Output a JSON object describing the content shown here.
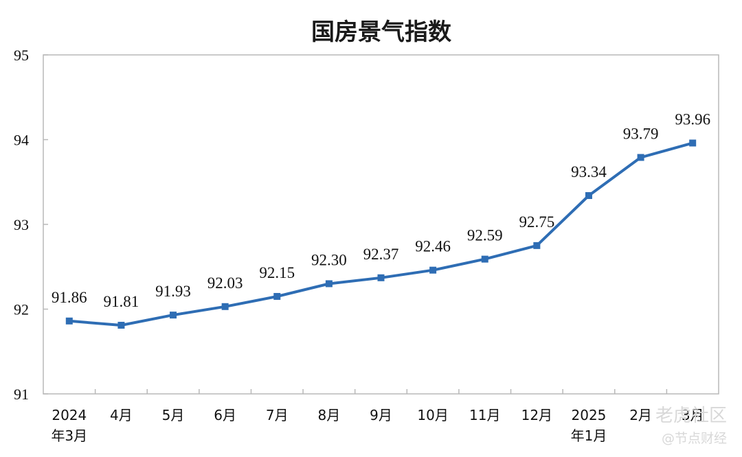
{
  "chart_data": {
    "type": "line",
    "title": "国房景气指数",
    "xlabel": "",
    "ylabel": "",
    "ylim": [
      91,
      95
    ],
    "yticks": [
      "91",
      "92",
      "93",
      "94",
      "95"
    ],
    "categories": [
      {
        "line1": "2024",
        "line2": "年3月"
      },
      {
        "line1": "4月",
        "line2": ""
      },
      {
        "line1": "5月",
        "line2": ""
      },
      {
        "line1": "6月",
        "line2": ""
      },
      {
        "line1": "7月",
        "line2": ""
      },
      {
        "line1": "8月",
        "line2": ""
      },
      {
        "line1": "9月",
        "line2": ""
      },
      {
        "line1": "10月",
        "line2": ""
      },
      {
        "line1": "11月",
        "line2": ""
      },
      {
        "line1": "12月",
        "line2": ""
      },
      {
        "line1": "2025",
        "line2": "年1月"
      },
      {
        "line1": "2月",
        "line2": ""
      },
      {
        "line1": "3月",
        "line2": ""
      }
    ],
    "values": [
      91.86,
      91.81,
      91.93,
      92.03,
      92.15,
      92.3,
      92.37,
      92.46,
      92.59,
      92.75,
      93.34,
      93.79,
      93.96
    ],
    "data_labels": [
      "91.86",
      "91.81",
      "91.93",
      "92.03",
      "92.15",
      "92.30",
      "92.37",
      "92.46",
      "92.59",
      "92.75",
      "93.34",
      "93.79",
      "93.96"
    ],
    "line_color": "#2e6db4",
    "grid": false,
    "legend": "none"
  },
  "watermark": {
    "line1": "老虎社区",
    "line2": "@节点财经"
  }
}
